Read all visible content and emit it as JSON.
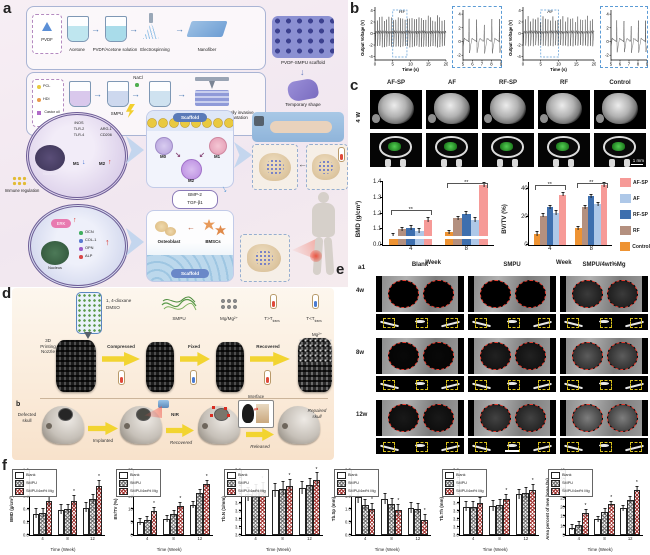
{
  "panel_labels": {
    "a": "a",
    "b": "b",
    "c": "c",
    "d": "d",
    "e": "e",
    "f": "f"
  },
  "colors": {
    "af_sp": "#f69a97",
    "af": "#aec8e8",
    "rf_sp": "#3e6fae",
    "rf": "#b4907f",
    "control": "#ee9333",
    "mg_red": "#a5302d",
    "defect_red": "#e8392b",
    "marker_yellow": "#d8c01c",
    "nir_blue": "#5b9bd5"
  },
  "panel_a": {
    "row1": {
      "material": "PVDF",
      "steps": [
        "Acetone",
        "PVDF/Acetone solution",
        "Electrospinning",
        "Nanofiber"
      ]
    },
    "row2": {
      "materials": [
        "PCL",
        "HDI",
        "Castor oil"
      ],
      "nacl": "NaCl",
      "steps": [
        "SMPU",
        "NaCl/SMPU",
        "3D printing"
      ]
    },
    "right": {
      "scaffold": "PVDF-SMPU scaffold",
      "temporary": "Temporary shape",
      "implantation": "Minimally invasive implantation"
    },
    "macrophage_cell": {
      "markers_m1": [
        "iNOS",
        "TLR-2",
        "TLR-4"
      ],
      "markers_m2": [
        "ARG-1",
        "CD206"
      ],
      "m1": "M1",
      "m2": "M2",
      "nucleus": "Nucleus"
    },
    "immune": "Immune regulation",
    "osteo_cell": {
      "erk": "ERK",
      "genes": [
        "OCN",
        "COL-1",
        "OPN",
        "ALP"
      ],
      "nucleus": "Nucleus"
    },
    "center": {
      "scaffold": "Scaffold",
      "m0": "M0",
      "m1": "M1",
      "m2": "M2",
      "factor1": "BMP-2",
      "factor2": "TGF-β1",
      "osteoblast": "Osteoblast",
      "bmscs": "BMSCs",
      "scaffold2": "Scaffold"
    }
  },
  "panel_c": {
    "columns": [
      "AF-SP",
      "AF",
      "RF-SP",
      "RF",
      "Control"
    ],
    "row_label": "4 W",
    "scale_bar": "1 mm",
    "legend": [
      {
        "label": "AF-SP",
        "color": "#f69a97"
      },
      {
        "label": "AF",
        "color": "#aec8e8"
      },
      {
        "label": "RF-SP",
        "color": "#3e6fae"
      },
      {
        "label": "RF",
        "color": "#b4907f"
      },
      {
        "label": "Control",
        "color": "#ee9333"
      }
    ]
  },
  "panel_d": {
    "solvent_1": "1, 4-dioxane",
    "solvent_2": "DMSO",
    "nozzle_1": "3D",
    "nozzle_2": "Printing",
    "nozzle_3": "Nozzle",
    "smpu": "SMPU",
    "mg": "Mg/Mg²⁺",
    "t_above_main": "T>T",
    "t_below_main": "T<T",
    "t_sub": "trans",
    "steps": [
      "Compressed",
      "Fixed",
      "Recovered"
    ],
    "mg_ion": "Mg²⁺",
    "sub_label": "b",
    "defected_1": "Defected",
    "defected_2": "skull",
    "implanted": "Implanted",
    "nir": "NIR",
    "recovered": "Recovered",
    "interface": "Interface",
    "released": "Released",
    "repaired_1": "Repaired",
    "repaired_2": "skull"
  },
  "panel_e": {
    "sub": "a1",
    "columns": [
      "Blank",
      "SMPU",
      "SMPU/4wt%Mg"
    ],
    "rows": [
      "4w",
      "8w",
      "12w"
    ]
  },
  "chart_data": [
    {
      "id": "rf_main",
      "type": "line",
      "label": "RF",
      "ylabel": "Output Voltage (V)",
      "xlabel": "Time (s)",
      "x0": 0,
      "x1": 20,
      "y0": -4.6,
      "y1": 4.6,
      "xticks": [
        0,
        5,
        10,
        15,
        20
      ],
      "yticks": [
        -4,
        -2,
        0,
        2,
        4
      ],
      "period": 0.65,
      "amp": 3.1,
      "neg": 2.4,
      "zoom": [
        5,
        9
      ]
    },
    {
      "id": "rf_inset",
      "type": "line",
      "x0": 5,
      "x1": 9,
      "y0": -2.7,
      "y1": 4.6,
      "xticks": [
        5,
        6,
        7,
        8,
        9
      ],
      "yticks": [
        -2,
        0,
        2,
        4
      ],
      "period": 0.8,
      "amp": 3.0,
      "neg": 1.7,
      "inset": true
    },
    {
      "id": "af_main",
      "type": "line",
      "label": "AF",
      "ylabel": "Output Voltage (V)",
      "xlabel": "Time (s)",
      "x0": 0,
      "x1": 20,
      "y0": -4.6,
      "y1": 4.6,
      "xticks": [
        0,
        5,
        10,
        15,
        20
      ],
      "yticks": [
        -4,
        -2,
        0,
        2,
        4
      ],
      "period": 0.7,
      "amp": 2.9,
      "neg": 2.2,
      "zoom": [
        5,
        10
      ]
    },
    {
      "id": "af_inset",
      "type": "line",
      "x0": 5,
      "x1": 9,
      "y0": -2.7,
      "y1": 4.6,
      "xticks": [
        5,
        6,
        7,
        8,
        9
      ],
      "yticks": [
        -2,
        0,
        2,
        4
      ],
      "period": 0.8,
      "amp": 2.8,
      "neg": 1.6,
      "inset": true
    },
    {
      "id": "c_bmd",
      "type": "bar",
      "size": "big",
      "ylabel": "BMD (g/cm³)",
      "xlabel": "Week",
      "categories": [
        "4",
        "8"
      ],
      "map": {
        "v0": 1.0,
        "k": 2.5
      },
      "yticks": [
        {
          "l": "0.0",
          "f": 0
        },
        {
          "l": "1.1",
          "f": 0.25
        },
        {
          "l": "1.2",
          "f": 0.5
        },
        {
          "l": "1.3",
          "f": 0.75
        },
        {
          "l": "1.4",
          "f": 1.0
        }
      ],
      "break_stripe": 0.1,
      "err": 0.012,
      "sig": [
        "**",
        "**"
      ],
      "series": [
        {
          "name": "Control",
          "color": "#ee9333",
          "values": [
            1.06,
            1.08
          ]
        },
        {
          "name": "RF",
          "color": "#b4907f",
          "values": [
            1.1,
            1.17
          ]
        },
        {
          "name": "RF-SP",
          "color": "#3e6fae",
          "values": [
            1.11,
            1.2
          ]
        },
        {
          "name": "AF",
          "color": "#aec8e8",
          "values": [
            1.09,
            1.16
          ]
        },
        {
          "name": "AF-SP",
          "color": "#f69a97",
          "values": [
            1.16,
            1.38
          ]
        }
      ]
    },
    {
      "id": "c_bvtv",
      "type": "bar",
      "size": "big",
      "ylabel": "BV/TV (%)",
      "xlabel": "Week",
      "categories": [
        "4",
        "8"
      ],
      "map": {
        "v0": 0,
        "k": 0.0222
      },
      "yticks": [
        {
          "l": "0",
          "f": 0
        },
        {
          "l": "20",
          "f": 0.444
        },
        {
          "l": "40",
          "f": 0.889
        }
      ],
      "err": 1.2,
      "sig": [
        "**",
        "**"
      ],
      "series": [
        {
          "name": "Control",
          "color": "#ee9333",
          "values": [
            8,
            12
          ]
        },
        {
          "name": "RF",
          "color": "#b4907f",
          "values": [
            21,
            27
          ]
        },
        {
          "name": "RF-SP",
          "color": "#3e6fae",
          "values": [
            27,
            35
          ]
        },
        {
          "name": "AF",
          "color": "#aec8e8",
          "values": [
            23,
            29
          ]
        },
        {
          "name": "AF-SP",
          "color": "#f69a97",
          "values": [
            36,
            43
          ]
        }
      ]
    },
    {
      "id": "f_bmd",
      "type": "bar",
      "size": "small",
      "ylabel": "BMD (g/cm³)",
      "xlabel": "Time (Week)",
      "categories": [
        "4",
        "8",
        "12"
      ],
      "map": {
        "v0": 0,
        "k": 1
      },
      "legend": true,
      "stars": [
        2
      ],
      "err": 0.07,
      "yticks": [
        {
          "l": "0.0",
          "f": 0
        },
        {
          "l": "0.2",
          "f": 0.2
        },
        {
          "l": "0.4",
          "f": 0.4
        },
        {
          "l": "0.6",
          "f": 0.6
        },
        {
          "l": "0.8",
          "f": 0.8
        },
        {
          "l": "1.0",
          "f": 1
        }
      ],
      "series": [
        {
          "name": "Blank",
          "pattern": "white",
          "values": [
            0.33,
            0.39,
            0.42
          ]
        },
        {
          "name": "SMPU",
          "pattern": "gray",
          "values": [
            0.34,
            0.4,
            0.55
          ]
        },
        {
          "name": "SMPU/4wt% Mg",
          "pattern": "red",
          "values": [
            0.52,
            0.53,
            0.76
          ]
        }
      ]
    },
    {
      "id": "f_bvtv",
      "type": "bar",
      "size": "small",
      "ylabel": "BV/TV (%)",
      "xlabel": "Time (Week)",
      "categories": [
        "4",
        "8",
        "12"
      ],
      "map": {
        "v0": 0,
        "k": 0.04
      },
      "legend": true,
      "stars": [
        2
      ],
      "err": 1.2,
      "yticks": [
        {
          "l": "0",
          "f": 0
        },
        {
          "l": "5",
          "f": 0.2
        },
        {
          "l": "10",
          "f": 0.4
        },
        {
          "l": "15",
          "f": 0.6
        },
        {
          "l": "20",
          "f": 0.8
        },
        {
          "l": "25",
          "f": 1
        }
      ],
      "series": [
        {
          "name": "Blank",
          "pattern": "white",
          "values": [
            5.0,
            6.2,
            11.5
          ]
        },
        {
          "name": "SMPU",
          "pattern": "gray",
          "values": [
            5.8,
            8.0,
            16.0
          ]
        },
        {
          "name": "SMPU/4wt% Mg",
          "pattern": "red",
          "values": [
            9.3,
            11.3,
            19.7
          ]
        }
      ]
    },
    {
      "id": "f_tbn",
      "type": "bar",
      "size": "small",
      "ylabel": "Tb.N (1/mm)",
      "xlabel": "Time (Week)",
      "categories": [
        "4",
        "8",
        "12"
      ],
      "map": {
        "v0": 3.0,
        "k": 1.25
      },
      "legend": true,
      "stars": [
        2
      ],
      "err": 0.08,
      "yticks": [
        {
          "l": "3.0",
          "f": 0
        },
        {
          "l": "3.1",
          "f": 0.125
        },
        {
          "l": "3.2",
          "f": 0.25
        },
        {
          "l": "3.3",
          "f": 0.375
        },
        {
          "l": "3.4",
          "f": 0.5
        },
        {
          "l": "3.5",
          "f": 0.625
        },
        {
          "l": "3.6",
          "f": 0.75
        },
        {
          "l": "3.7",
          "f": 0.875
        },
        {
          "l": "3.8",
          "f": 1
        }
      ],
      "series": [
        {
          "name": "Blank",
          "pattern": "white",
          "values": [
            3.5,
            3.55,
            3.58
          ]
        },
        {
          "name": "SMPU",
          "pattern": "gray",
          "values": [
            3.54,
            3.57,
            3.61
          ]
        },
        {
          "name": "SMPU/4wt% Mg",
          "pattern": "red",
          "values": [
            3.56,
            3.6,
            3.68
          ]
        }
      ]
    },
    {
      "id": "f_tbsp",
      "type": "bar",
      "size": "small",
      "ylabel": "Tb.Sp (mm)",
      "xlabel": "Time (Week)",
      "categories": [
        "4",
        "8",
        "12"
      ],
      "map": {
        "v0": 0,
        "k": 0.4
      },
      "legend": true,
      "stars": [
        2
      ],
      "err": 0.2,
      "yticks": [
        {
          "l": "0.0",
          "f": 0
        },
        {
          "l": "0.5",
          "f": 0.2
        },
        {
          "l": "1.0",
          "f": 0.4
        },
        {
          "l": "1.5",
          "f": 0.6
        },
        {
          "l": "2.0",
          "f": 0.8
        },
        {
          "l": "2.5",
          "f": 1
        }
      ],
      "series": [
        {
          "name": "Blank",
          "pattern": "white",
          "values": [
            1.45,
            1.4,
            1.05
          ]
        },
        {
          "name": "SMPU",
          "pattern": "gray",
          "values": [
            1.15,
            1.18,
            1.0
          ]
        },
        {
          "name": "SMPU/4wt% Mg",
          "pattern": "red",
          "values": [
            1.0,
            0.95,
            0.57
          ]
        }
      ]
    },
    {
      "id": "f_tbth",
      "type": "bar",
      "size": "small",
      "ylabel": "Tb.Th (mm)",
      "xlabel": "Time (Week)",
      "categories": [
        "4",
        "8",
        "12"
      ],
      "map": {
        "v0": 3.0,
        "k": 1.25
      },
      "legend": true,
      "stars": [
        2
      ],
      "err": 0.06,
      "yticks": [
        {
          "l": "3.0",
          "f": 0
        },
        {
          "l": "3.1",
          "f": 0.125
        },
        {
          "l": "3.2",
          "f": 0.25
        },
        {
          "l": "3.3",
          "f": 0.375
        },
        {
          "l": "3.4",
          "f": 0.5
        },
        {
          "l": "3.5",
          "f": 0.625
        },
        {
          "l": "3.6",
          "f": 0.75
        },
        {
          "l": "3.7",
          "f": 0.875
        },
        {
          "l": "3.8",
          "f": 1
        }
      ],
      "series": [
        {
          "name": "Blank",
          "pattern": "white",
          "values": [
            3.35,
            3.36,
            3.5
          ]
        },
        {
          "name": "SMPU",
          "pattern": "gray",
          "values": [
            3.35,
            3.37,
            3.52
          ]
        },
        {
          "name": "SMPU/4wt% Mg",
          "pattern": "red",
          "values": [
            3.4,
            3.44,
            3.56
          ]
        }
      ]
    },
    {
      "id": "f_area",
      "type": "bar",
      "size": "small",
      "ylabel": "Area percent of new bone (%)",
      "xlabel": "Time (Week)",
      "categories": [
        "4",
        "8",
        "12"
      ],
      "map": {
        "v0": 5,
        "k": 0.02857
      },
      "legend": true,
      "stars": [
        2
      ],
      "err": 1.5,
      "yticks": [
        {
          "l": "5",
          "f": 0
        },
        {
          "l": "10",
          "f": 0.143
        },
        {
          "l": "15",
          "f": 0.286
        },
        {
          "l": "20",
          "f": 0.429
        },
        {
          "l": "25",
          "f": 0.571
        },
        {
          "l": "30",
          "f": 0.714
        },
        {
          "l": "35",
          "f": 0.857
        },
        {
          "l": "40",
          "f": 1
        }
      ],
      "series": [
        {
          "name": "Blank",
          "pattern": "white",
          "values": [
            9,
            13.5,
            19.5
          ]
        },
        {
          "name": "SMPU",
          "pattern": "gray",
          "values": [
            10.5,
            17.5,
            24
          ]
        },
        {
          "name": "SMPU/4wt% Mg",
          "pattern": "red",
          "values": [
            17,
            21.5,
            29.5
          ]
        }
      ]
    }
  ]
}
